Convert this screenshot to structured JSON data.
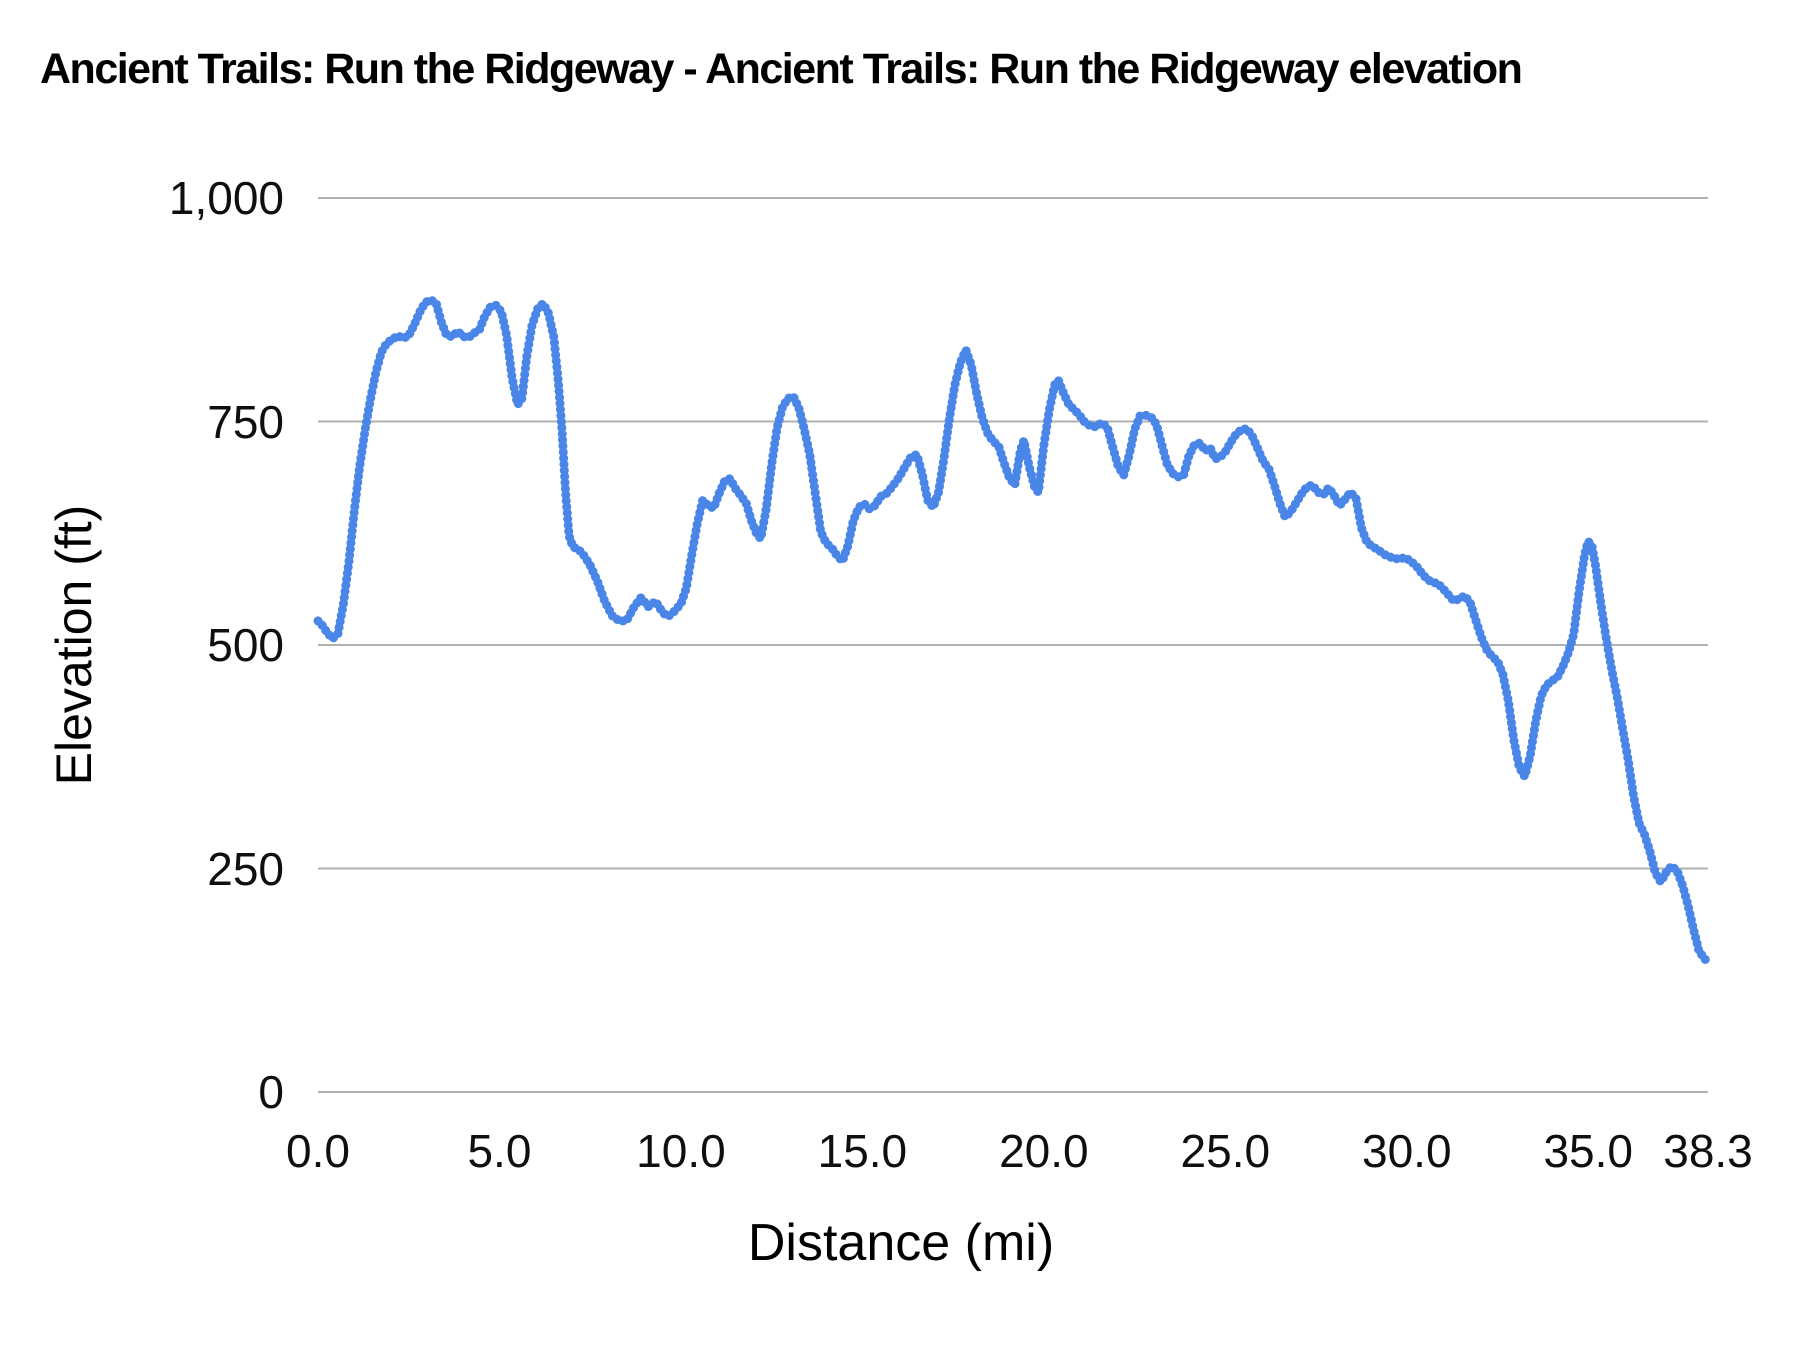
{
  "title": "Ancient Trails: Run the Ridgeway - Ancient Trails: Run the Ridgeway elevation",
  "colors": {
    "line": "#4a86e8",
    "gridline": "#b0b0b0",
    "text": "#000000",
    "background": "#ffffff"
  },
  "chart_data": {
    "type": "line",
    "title": "Ancient Trails: Run the Ridgeway - Ancient Trails: Run the Ridgeway elevation",
    "xlabel": "Distance (mi)",
    "ylabel": "Elevation (ft)",
    "xlim": [
      0,
      38.3
    ],
    "ylim": [
      0,
      1000
    ],
    "grid": true,
    "legend": "none",
    "line_color": "#4a86e8",
    "gridline_color": "#b0b0b0",
    "x_ticks": [
      {
        "value": 0,
        "label": "0.0"
      },
      {
        "value": 5,
        "label": "5.0"
      },
      {
        "value": 10,
        "label": "10.0"
      },
      {
        "value": 15,
        "label": "15.0"
      },
      {
        "value": 20,
        "label": "20.0"
      },
      {
        "value": 25,
        "label": "25.0"
      },
      {
        "value": 30,
        "label": "30.0"
      },
      {
        "value": 35,
        "label": "35.0"
      },
      {
        "value": 38.3,
        "label": "38.3"
      }
    ],
    "y_ticks": [
      {
        "value": 0,
        "label": "0"
      },
      {
        "value": 250,
        "label": "250"
      },
      {
        "value": 500,
        "label": "500"
      },
      {
        "value": 750,
        "label": "750"
      },
      {
        "value": 1000,
        "label": "1,000"
      }
    ],
    "series": [
      {
        "name": "elevation",
        "points": [
          [
            0,
            527
          ],
          [
            0.1,
            523
          ],
          [
            0.25,
            514
          ],
          [
            0.4,
            507
          ],
          [
            0.55,
            513
          ],
          [
            0.7,
            546
          ],
          [
            0.85,
            592
          ],
          [
            1.0,
            650
          ],
          [
            1.15,
            700
          ],
          [
            1.3,
            741
          ],
          [
            1.45,
            776
          ],
          [
            1.6,
            806
          ],
          [
            1.75,
            828
          ],
          [
            1.9,
            838
          ],
          [
            2.05,
            842
          ],
          [
            2.2,
            846
          ],
          [
            2.35,
            843
          ],
          [
            2.5,
            846
          ],
          [
            2.65,
            858
          ],
          [
            2.8,
            872
          ],
          [
            2.95,
            883
          ],
          [
            3.1,
            886
          ],
          [
            3.25,
            883
          ],
          [
            3.4,
            861
          ],
          [
            3.55,
            846
          ],
          [
            3.7,
            845
          ],
          [
            3.85,
            851
          ],
          [
            4.0,
            845
          ],
          [
            4.15,
            844
          ],
          [
            4.3,
            849
          ],
          [
            4.45,
            853
          ],
          [
            4.6,
            868
          ],
          [
            4.75,
            878
          ],
          [
            4.9,
            880
          ],
          [
            5.05,
            873
          ],
          [
            5.2,
            846
          ],
          [
            5.35,
            798
          ],
          [
            5.5,
            769
          ],
          [
            5.62,
            776
          ],
          [
            5.75,
            822
          ],
          [
            5.9,
            858
          ],
          [
            6.05,
            876
          ],
          [
            6.2,
            882
          ],
          [
            6.35,
            871
          ],
          [
            6.5,
            844
          ],
          [
            6.62,
            795
          ],
          [
            6.72,
            742
          ],
          [
            6.82,
            672
          ],
          [
            6.92,
            622
          ],
          [
            7.02,
            610
          ],
          [
            7.2,
            606
          ],
          [
            7.35,
            599
          ],
          [
            7.5,
            589
          ],
          [
            7.7,
            571
          ],
          [
            7.9,
            549
          ],
          [
            8.1,
            533
          ],
          [
            8.3,
            527
          ],
          [
            8.5,
            527
          ],
          [
            8.7,
            542
          ],
          [
            8.9,
            553
          ],
          [
            9.1,
            543
          ],
          [
            9.3,
            549
          ],
          [
            9.5,
            536
          ],
          [
            9.65,
            532
          ],
          [
            9.8,
            537
          ],
          [
            10.0,
            546
          ],
          [
            10.15,
            564
          ],
          [
            10.3,
            601
          ],
          [
            10.45,
            636
          ],
          [
            10.6,
            662
          ],
          [
            10.75,
            656
          ],
          [
            10.9,
            653
          ],
          [
            11.05,
            669
          ],
          [
            11.2,
            683
          ],
          [
            11.35,
            686
          ],
          [
            11.5,
            675
          ],
          [
            11.65,
            667
          ],
          [
            11.8,
            658
          ],
          [
            11.95,
            638
          ],
          [
            12.1,
            623
          ],
          [
            12.2,
            619
          ],
          [
            12.35,
            652
          ],
          [
            12.5,
            702
          ],
          [
            12.65,
            743
          ],
          [
            12.8,
            766
          ],
          [
            12.95,
            776
          ],
          [
            13.1,
            778
          ],
          [
            13.25,
            765
          ],
          [
            13.4,
            741
          ],
          [
            13.55,
            713
          ],
          [
            13.7,
            670
          ],
          [
            13.85,
            627
          ],
          [
            14.0,
            614
          ],
          [
            14.15,
            609
          ],
          [
            14.3,
            600
          ],
          [
            14.45,
            594
          ],
          [
            14.6,
            611
          ],
          [
            14.75,
            639
          ],
          [
            14.9,
            654
          ],
          [
            15.05,
            658
          ],
          [
            15.2,
            652
          ],
          [
            15.35,
            656
          ],
          [
            15.5,
            666
          ],
          [
            15.65,
            669
          ],
          [
            15.8,
            676
          ],
          [
            16.0,
            687
          ],
          [
            16.2,
            701
          ],
          [
            16.35,
            711
          ],
          [
            16.5,
            713
          ],
          [
            16.65,
            691
          ],
          [
            16.8,
            662
          ],
          [
            16.95,
            654
          ],
          [
            17.1,
            671
          ],
          [
            17.25,
            709
          ],
          [
            17.4,
            754
          ],
          [
            17.55,
            791
          ],
          [
            17.7,
            816
          ],
          [
            17.85,
            830
          ],
          [
            18.0,
            813
          ],
          [
            18.15,
            781
          ],
          [
            18.3,
            754
          ],
          [
            18.45,
            737
          ],
          [
            18.6,
            728
          ],
          [
            18.75,
            723
          ],
          [
            18.9,
            704
          ],
          [
            19.05,
            687
          ],
          [
            19.2,
            679
          ],
          [
            19.35,
            717
          ],
          [
            19.45,
            729
          ],
          [
            19.6,
            699
          ],
          [
            19.75,
            676
          ],
          [
            19.85,
            671
          ],
          [
            20.0,
            723
          ],
          [
            20.15,
            763
          ],
          [
            20.3,
            791
          ],
          [
            20.4,
            796
          ],
          [
            20.55,
            781
          ],
          [
            20.7,
            768
          ],
          [
            20.85,
            763
          ],
          [
            21.0,
            756
          ],
          [
            21.15,
            748
          ],
          [
            21.3,
            745
          ],
          [
            21.45,
            744
          ],
          [
            21.6,
            749
          ],
          [
            21.75,
            743
          ],
          [
            21.9,
            721
          ],
          [
            22.05,
            700
          ],
          [
            22.2,
            690
          ],
          [
            22.35,
            712
          ],
          [
            22.5,
            741
          ],
          [
            22.65,
            756
          ],
          [
            22.8,
            757
          ],
          [
            22.95,
            755
          ],
          [
            23.1,
            747
          ],
          [
            23.25,
            724
          ],
          [
            23.4,
            702
          ],
          [
            23.55,
            692
          ],
          [
            23.7,
            688
          ],
          [
            23.85,
            690
          ],
          [
            24.0,
            712
          ],
          [
            24.15,
            724
          ],
          [
            24.3,
            726
          ],
          [
            24.45,
            717
          ],
          [
            24.58,
            721
          ],
          [
            24.72,
            708
          ],
          [
            24.85,
            710
          ],
          [
            25.0,
            716
          ],
          [
            25.15,
            727
          ],
          [
            25.3,
            736
          ],
          [
            25.45,
            741
          ],
          [
            25.6,
            742
          ],
          [
            25.75,
            733
          ],
          [
            25.9,
            719
          ],
          [
            26.05,
            705
          ],
          [
            26.2,
            697
          ],
          [
            26.35,
            679
          ],
          [
            26.5,
            659
          ],
          [
            26.65,
            643
          ],
          [
            26.8,
            649
          ],
          [
            26.95,
            659
          ],
          [
            27.1,
            669
          ],
          [
            27.25,
            677
          ],
          [
            27.4,
            679
          ],
          [
            27.55,
            671
          ],
          [
            27.7,
            668
          ],
          [
            27.85,
            676
          ],
          [
            28.0,
            667
          ],
          [
            28.15,
            656
          ],
          [
            28.3,
            663
          ],
          [
            28.45,
            671
          ],
          [
            28.6,
            664
          ],
          [
            28.75,
            631
          ],
          [
            28.9,
            615
          ],
          [
            29.05,
            610
          ],
          [
            29.2,
            607
          ],
          [
            29.35,
            602
          ],
          [
            29.5,
            599
          ],
          [
            29.65,
            597
          ],
          [
            29.8,
            596
          ],
          [
            29.95,
            598
          ],
          [
            30.1,
            594
          ],
          [
            30.25,
            589
          ],
          [
            30.4,
            581
          ],
          [
            30.55,
            574
          ],
          [
            30.7,
            570
          ],
          [
            30.85,
            569
          ],
          [
            31.0,
            563
          ],
          [
            31.15,
            556
          ],
          [
            31.3,
            549
          ],
          [
            31.45,
            552
          ],
          [
            31.6,
            555
          ],
          [
            31.75,
            547
          ],
          [
            31.9,
            528
          ],
          [
            32.05,
            509
          ],
          [
            32.2,
            495
          ],
          [
            32.35,
            487
          ],
          [
            32.5,
            482
          ],
          [
            32.65,
            467
          ],
          [
            32.8,
            437
          ],
          [
            32.95,
            394
          ],
          [
            33.1,
            363
          ],
          [
            33.25,
            353
          ],
          [
            33.4,
            376
          ],
          [
            33.55,
            414
          ],
          [
            33.7,
            443
          ],
          [
            33.85,
            455
          ],
          [
            34.0,
            460
          ],
          [
            34.15,
            464
          ],
          [
            34.3,
            476
          ],
          [
            34.45,
            491
          ],
          [
            34.6,
            512
          ],
          [
            34.75,
            561
          ],
          [
            34.9,
            601
          ],
          [
            35.0,
            616
          ],
          [
            35.1,
            611
          ],
          [
            35.2,
            589
          ],
          [
            35.35,
            546
          ],
          [
            35.5,
            506
          ],
          [
            35.65,
            472
          ],
          [
            35.8,
            441
          ],
          [
            35.95,
            406
          ],
          [
            36.1,
            371
          ],
          [
            36.25,
            331
          ],
          [
            36.4,
            301
          ],
          [
            36.55,
            288
          ],
          [
            36.7,
            269
          ],
          [
            36.85,
            245
          ],
          [
            37.0,
            235
          ],
          [
            37.15,
            246
          ],
          [
            37.3,
            253
          ],
          [
            37.45,
            247
          ],
          [
            37.6,
            231
          ],
          [
            37.75,
            209
          ],
          [
            37.9,
            182
          ],
          [
            38.05,
            158
          ],
          [
            38.2,
            149
          ],
          [
            38.3,
            146
          ]
        ]
      }
    ]
  }
}
